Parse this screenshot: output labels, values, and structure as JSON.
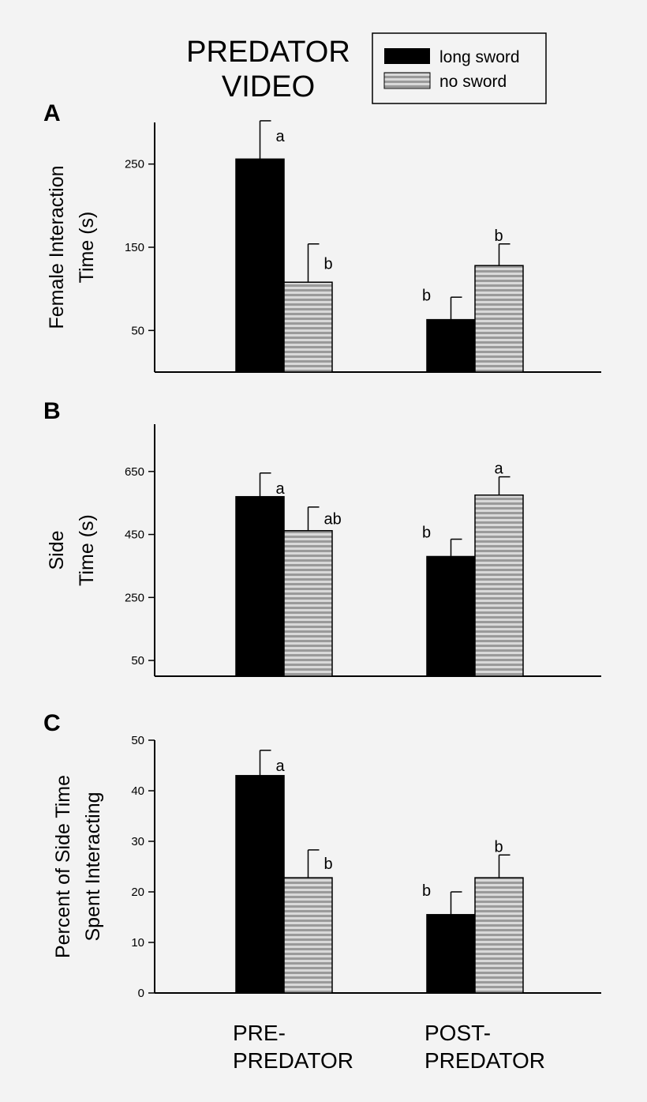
{
  "header": {
    "title_line1": "PREDATOR",
    "title_line2": "VIDEO"
  },
  "legend": {
    "items": [
      {
        "label": "long sword",
        "color": "#000000",
        "pattern": "solid"
      },
      {
        "label": "no sword",
        "color": "#cccccc",
        "pattern": "horizontal-stripes"
      }
    ]
  },
  "groups": [
    {
      "line1": "PRE-",
      "line2": "PREDATOR"
    },
    {
      "line1": "POST-",
      "line2": "PREDATOR"
    }
  ],
  "chart_data": [
    {
      "type": "bar",
      "panel": "A",
      "ylabel_line1": "Female Interaction",
      "ylabel_line2": "Time (s)",
      "ylim": [
        0,
        300
      ],
      "yticks": [
        50,
        150,
        250
      ],
      "categories": [
        "PRE-PREDATOR",
        "POST-PREDATOR"
      ],
      "series": [
        {
          "name": "long sword",
          "values": [
            256,
            63
          ],
          "errors": [
            46,
            27
          ],
          "letters": [
            "a",
            "b"
          ]
        },
        {
          "name": "no sword",
          "values": [
            108,
            128
          ],
          "errors": [
            46,
            26
          ],
          "letters": [
            "b",
            "b"
          ]
        }
      ]
    },
    {
      "type": "bar",
      "panel": "B",
      "ylabel_line1": "Side",
      "ylabel_line2": "Time (s)",
      "ylim": [
        0,
        800
      ],
      "yticks": [
        50,
        250,
        450,
        650
      ],
      "categories": [
        "PRE-PREDATOR",
        "POST-PREDATOR"
      ],
      "series": [
        {
          "name": "long sword",
          "values": [
            570,
            380
          ],
          "errors": [
            75,
            55
          ],
          "letters": [
            "a",
            "b"
          ]
        },
        {
          "name": "no sword",
          "values": [
            462,
            575
          ],
          "errors": [
            75,
            58
          ],
          "letters": [
            "ab",
            "a"
          ]
        }
      ]
    },
    {
      "type": "bar",
      "panel": "C",
      "ylabel_line1": "Percent of Side Time",
      "ylabel_line2": "Spent Interacting",
      "ylim": [
        0,
        50
      ],
      "yticks": [
        0,
        10,
        20,
        30,
        40,
        50
      ],
      "categories": [
        "PRE-PREDATOR",
        "POST-PREDATOR"
      ],
      "series": [
        {
          "name": "long sword",
          "values": [
            43,
            15.5
          ],
          "errors": [
            5,
            4.5
          ],
          "letters": [
            "a",
            "b"
          ]
        },
        {
          "name": "no sword",
          "values": [
            22.8,
            22.8
          ],
          "errors": [
            5.5,
            4.5
          ],
          "letters": [
            "b",
            "b"
          ]
        }
      ]
    }
  ]
}
